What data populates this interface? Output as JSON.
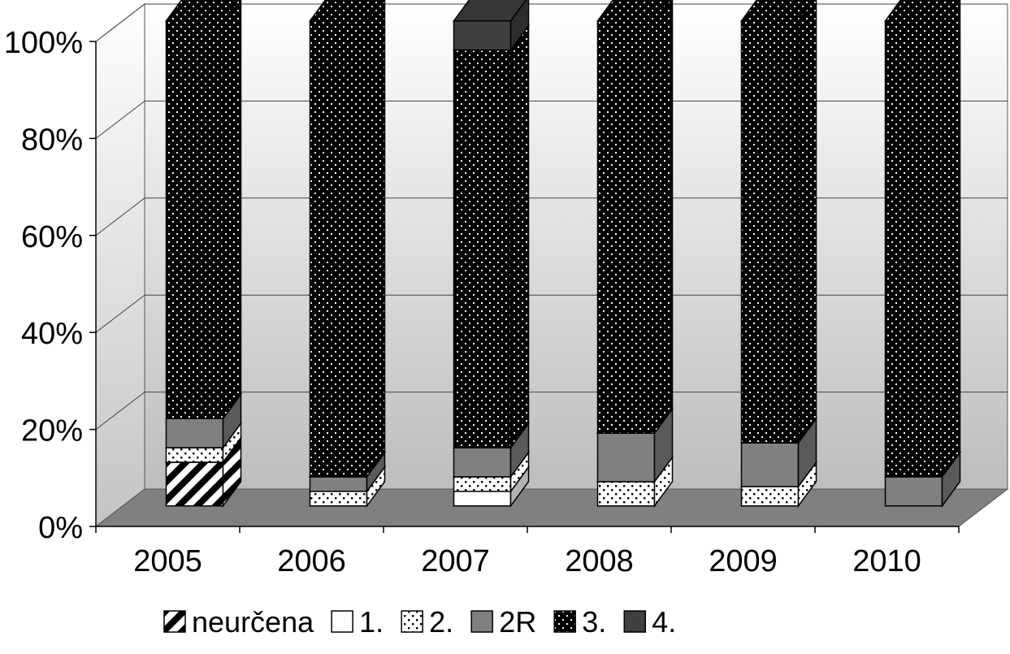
{
  "chart_data": {
    "type": "bar",
    "stacked": true,
    "normalized": true,
    "style": "3d",
    "categories": [
      "2005",
      "2006",
      "2007",
      "2008",
      "2009",
      "2010"
    ],
    "series": [
      {
        "name": "neurčena",
        "color": "#ffffff",
        "pattern": "diagonal-stripes",
        "values": [
          9,
          0,
          0,
          0,
          0,
          0
        ]
      },
      {
        "name": "1.",
        "color": "#ffffff",
        "pattern": "solid",
        "values": [
          0,
          0,
          3,
          0,
          0,
          0
        ]
      },
      {
        "name": "2.",
        "color": "#ffffff",
        "pattern": "sparse-dots",
        "values": [
          3,
          3,
          3,
          5,
          4,
          0
        ]
      },
      {
        "name": "2R",
        "color": "#808080",
        "pattern": "solid",
        "values": [
          6,
          3,
          6,
          10,
          9,
          6
        ]
      },
      {
        "name": "3.",
        "color": "#000000",
        "pattern": "dense-dots",
        "values": [
          82,
          94,
          82,
          85,
          87,
          94
        ]
      },
      {
        "name": "4.",
        "color": "#404040",
        "pattern": "solid",
        "values": [
          0,
          0,
          6,
          0,
          0,
          0
        ]
      }
    ],
    "y_ticks": [
      "0%",
      "20%",
      "40%",
      "60%",
      "80%",
      "100%"
    ],
    "ylim": [
      0,
      100
    ],
    "grid": true,
    "legend_position": "bottom"
  }
}
